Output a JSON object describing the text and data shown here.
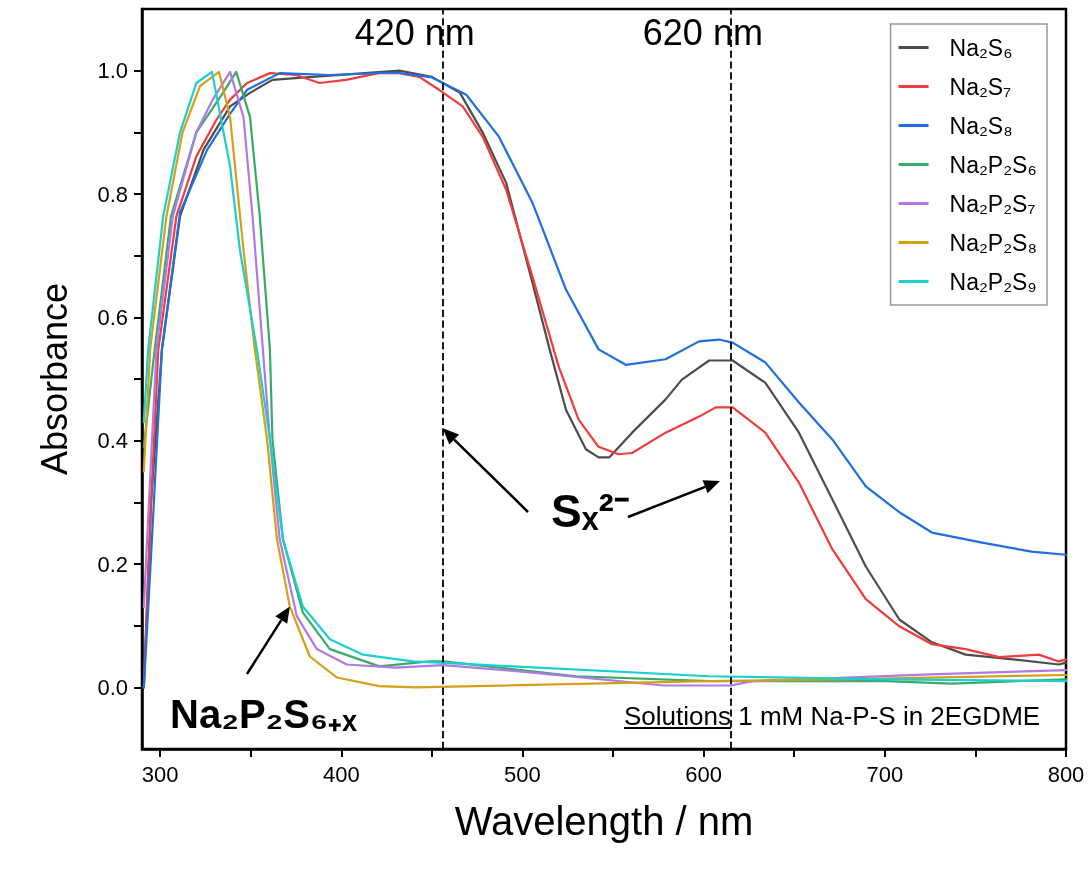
{
  "chart_data": {
    "type": "line",
    "xlabel": "Wavelength / nm",
    "ylabel": "Absorbance",
    "xlim": [
      290,
      800
    ],
    "ylim": [
      -0.1,
      1.1
    ],
    "xticks": [
      300,
      {
        "value": 350,
        "label": null
      },
      400,
      {
        "value": 450,
        "label": null
      },
      500,
      {
        "value": 550,
        "label": null
      },
      600,
      {
        "value": 650,
        "label": null
      },
      700,
      {
        "value": 750,
        "label": null
      },
      800
    ],
    "yticks": [
      {
        "value": 0,
        "label": "0.0"
      },
      {
        "value": 0.1,
        "label": null
      },
      {
        "value": 0.2,
        "label": "0.2"
      },
      {
        "value": 0.3,
        "label": null
      },
      {
        "value": 0.4,
        "label": "0.4"
      },
      {
        "value": 0.5,
        "label": null
      },
      {
        "value": 0.6,
        "label": "0.6"
      },
      {
        "value": 0.7,
        "label": null
      },
      {
        "value": 0.8,
        "label": "0.8"
      },
      {
        "value": 0.9,
        "label": null
      },
      {
        "value": 1.0,
        "label": "1.0"
      }
    ],
    "grid": false,
    "legend": "top right",
    "marker": "none",
    "line_style": "solid",
    "ref_lines": [
      {
        "axis": "x",
        "value": 456,
        "label": "420 nm",
        "color": "#000000",
        "line_style": "dashed"
      },
      {
        "axis": "x",
        "value": 615,
        "label": "620 nm",
        "color": "#000000",
        "line_style": "dashed"
      }
    ],
    "annotations": [
      {
        "text": "Sₓ²⁻",
        "x": 456,
        "y": 0.42
      },
      {
        "text": "Na₂P₂S₆₊ₓ",
        "x": 371.6,
        "y": 0.131
      },
      "Solutions 1 mM Na-P-S in 2EGDME"
    ],
    "series": [
      {
        "name": "Na₂S₆",
        "color": "#4d4d4d",
        "x": [
          291,
          295,
          301,
          311,
          324,
          338.6,
          349.6,
          362,
          384,
          413,
          432,
          450,
          465.5,
          478,
          491,
          505.5,
          515,
          524,
          535,
          542,
          548,
          560.5,
          579,
          588,
          603,
          616,
          634,
          652.6,
          671,
          689.5,
          708,
          726,
          744.6,
          772,
          796,
          800
        ],
        "values": [
          0,
          0.3,
          0.548,
          0.764,
          0.872,
          0.942,
          0.964,
          0.985,
          0.99,
          0.996,
          1.0,
          0.99,
          0.964,
          0.9,
          0.818,
          0.656,
          0.548,
          0.45,
          0.386,
          0.373,
          0.373,
          0.413,
          0.467,
          0.499,
          0.53,
          0.53,
          0.494,
          0.413,
          0.305,
          0.196,
          0.11,
          0.073,
          0.053,
          0.045,
          0.037,
          0.04
        ]
      },
      {
        "name": "Na₂S₇",
        "color": "#f03c3c",
        "x": [
          291,
          295,
          299,
          309,
          320,
          331,
          338.6,
          348,
          360.6,
          375,
          388,
          402.6,
          420.6,
          432,
          443,
          454,
          467,
          478,
          491,
          505.5,
          520,
          531,
          542,
          553,
          560.5,
          579,
          597.5,
          606.7,
          616,
          634,
          652.6,
          671,
          689.5,
          708,
          726,
          744.6,
          763,
          785,
          796,
          800
        ],
        "values": [
          0,
          0.3,
          0.548,
          0.764,
          0.861,
          0.92,
          0.953,
          0.98,
          0.996,
          0.993,
          0.98,
          0.985,
          0.996,
          0.996,
          0.99,
          0.969,
          0.942,
          0.893,
          0.807,
          0.666,
          0.52,
          0.434,
          0.39,
          0.378,
          0.38,
          0.413,
          0.439,
          0.454,
          0.454,
          0.413,
          0.332,
          0.224,
          0.143,
          0.099,
          0.07,
          0.062,
          0.049,
          0.053,
          0.042,
          0.045
        ]
      },
      {
        "name": "Na₂S₈",
        "color": "#1f6fe0",
        "x": [
          291,
          294.5,
          301,
          311,
          326,
          338.6,
          348,
          366,
          393.7,
          430,
          450,
          469,
          487,
          505.5,
          524,
          542,
          557,
          579,
          597.5,
          608.5,
          616,
          634,
          652.6,
          671,
          689.5,
          708,
          726,
          753,
          781,
          800
        ],
        "values": [
          0,
          0.186,
          0.548,
          0.77,
          0.872,
          0.93,
          0.969,
          0.996,
          0.993,
          0.997,
          0.989,
          0.961,
          0.893,
          0.786,
          0.645,
          0.548,
          0.523,
          0.532,
          0.561,
          0.564,
          0.559,
          0.527,
          0.462,
          0.402,
          0.326,
          0.284,
          0.251,
          0.235,
          0.22,
          0.215
        ]
      },
      {
        "name": "Na₂P₂S₆",
        "color": "#3aaa6a",
        "x": [
          291,
          297,
          306,
          320,
          334.7,
          342,
          349.6,
          355,
          360.6,
          362,
          367.8,
          378.8,
          393.7,
          421,
          448.8,
          456.5,
          529.7,
          603,
          700.5,
          737,
          800
        ],
        "values": [
          0.39,
          0.548,
          0.764,
          0.9,
          0.964,
          0.998,
          0.925,
          0.764,
          0.548,
          0.402,
          0.24,
          0.121,
          0.062,
          0.034,
          0.042,
          0.042,
          0.018,
          0.01,
          0.01,
          0.006,
          0.013
        ]
      },
      {
        "name": "Na₂P₂S₇",
        "color": "#b07ae6",
        "x": [
          291,
          298,
          307,
          320,
          329,
          338.6,
          346,
          351,
          356.7,
          360.6,
          366,
          375.5,
          386.5,
          403,
          430,
          456.5,
          505.5,
          578,
          615,
          627,
          725,
          800
        ],
        "values": [
          0.13,
          0.548,
          0.764,
          0.9,
          0.953,
          0.998,
          0.925,
          0.764,
          0.548,
          0.402,
          0.24,
          0.115,
          0.062,
          0.037,
          0.032,
          0.036,
          0.024,
          0.003,
          0.003,
          0.01,
          0.021,
          0.028
        ]
      },
      {
        "name": "Na₂P₂S₈",
        "color": "#d4a017",
        "x": [
          291,
          294.5,
          303.5,
          312.4,
          322,
          332.5,
          338.6,
          346,
          352.3,
          359,
          364.5,
          371.6,
          382.6,
          397.5,
          421,
          441,
          603,
          675.6,
          800
        ],
        "values": [
          0.35,
          0.548,
          0.764,
          0.9,
          0.975,
          0.998,
          0.925,
          0.71,
          0.548,
          0.402,
          0.24,
          0.131,
          0.05,
          0.016,
          0.002,
          0.0,
          0.01,
          0.013,
          0.02
        ]
      },
      {
        "name": "Na₂P₂S₉",
        "color": "#1ccfcf",
        "x": [
          291,
          293.4,
          301.7,
          311,
          320,
          328.6,
          338.6,
          344,
          353.4,
          360.6,
          367.8,
          378.8,
          393.7,
          412,
          439.5,
          481,
          603,
          700.5,
          800
        ],
        "values": [
          0.43,
          0.548,
          0.764,
          0.9,
          0.98,
          0.998,
          0.845,
          0.71,
          0.548,
          0.402,
          0.24,
          0.131,
          0.078,
          0.053,
          0.042,
          0.036,
          0.018,
          0.013,
          0.01
        ]
      }
    ]
  }
}
